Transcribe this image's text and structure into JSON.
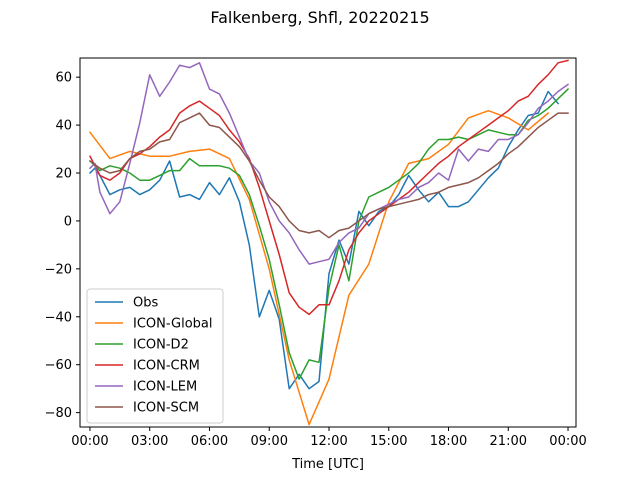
{
  "chart_data": {
    "type": "line",
    "title": "Falkenberg, Shfl, 20220215",
    "xlabel": "Time [UTC]",
    "ylabel": "",
    "xlim": [
      -0.5,
      24.4
    ],
    "ylim": [
      -86,
      68
    ],
    "x_ticks": [
      {
        "value": 0,
        "label": "00:00"
      },
      {
        "value": 3,
        "label": "03:00"
      },
      {
        "value": 6,
        "label": "06:00"
      },
      {
        "value": 9,
        "label": "09:00"
      },
      {
        "value": 12,
        "label": "12:00"
      },
      {
        "value": 15,
        "label": "15:00"
      },
      {
        "value": 18,
        "label": "18:00"
      },
      {
        "value": 21,
        "label": "21:00"
      },
      {
        "value": 24,
        "label": "00:00"
      }
    ],
    "y_ticks": [
      {
        "value": -80,
        "label": "−80"
      },
      {
        "value": -60,
        "label": "−60"
      },
      {
        "value": -40,
        "label": "−40"
      },
      {
        "value": -20,
        "label": "−20"
      },
      {
        "value": 0,
        "label": "0"
      },
      {
        "value": 20,
        "label": "20"
      },
      {
        "value": 40,
        "label": "40"
      },
      {
        "value": 60,
        "label": "60"
      }
    ],
    "grid": false,
    "legend_position": "lower-left",
    "series": [
      {
        "name": "Obs",
        "color": "#1f77b4",
        "points": [
          [
            0,
            20
          ],
          [
            0.25,
            22
          ],
          [
            0.5,
            19
          ],
          [
            1,
            11
          ],
          [
            1.5,
            13
          ],
          [
            2,
            14
          ],
          [
            2.5,
            11
          ],
          [
            3,
            13
          ],
          [
            3.5,
            17
          ],
          [
            4,
            25
          ],
          [
            4.5,
            10
          ],
          [
            5,
            11
          ],
          [
            5.5,
            9
          ],
          [
            6,
            16
          ],
          [
            6.5,
            11
          ],
          [
            7,
            18
          ],
          [
            7.5,
            8
          ],
          [
            8,
            -10
          ],
          [
            8.5,
            -40
          ],
          [
            9,
            -29
          ],
          [
            9.5,
            -41
          ],
          [
            10,
            -70
          ],
          [
            10.5,
            -64
          ],
          [
            11,
            -70
          ],
          [
            11.5,
            -67
          ],
          [
            12,
            -22
          ],
          [
            12.5,
            -8
          ],
          [
            13,
            -18
          ],
          [
            13.5,
            4
          ],
          [
            14,
            -2
          ],
          [
            14.5,
            4
          ],
          [
            15,
            6
          ],
          [
            15.5,
            11
          ],
          [
            16,
            19
          ],
          [
            16.5,
            13
          ],
          [
            17,
            8
          ],
          [
            17.5,
            12
          ],
          [
            18,
            6
          ],
          [
            18.5,
            6
          ],
          [
            19,
            8
          ],
          [
            19.5,
            13
          ],
          [
            20,
            18
          ],
          [
            20.5,
            22
          ],
          [
            21,
            31
          ],
          [
            21.5,
            38
          ],
          [
            22,
            44
          ],
          [
            22.5,
            45
          ],
          [
            23,
            54
          ],
          [
            23.5,
            49
          ]
        ]
      },
      {
        "name": "ICON-Global",
        "color": "#ff7f0e",
        "points": [
          [
            0,
            37
          ],
          [
            1,
            26
          ],
          [
            2,
            29
          ],
          [
            3,
            27
          ],
          [
            4,
            27
          ],
          [
            5,
            29
          ],
          [
            6,
            30
          ],
          [
            7,
            26
          ],
          [
            8,
            9
          ],
          [
            9,
            -20
          ],
          [
            10,
            -58
          ],
          [
            11,
            -85
          ],
          [
            12,
            -66
          ],
          [
            13,
            -31
          ],
          [
            14,
            -18
          ],
          [
            15,
            8
          ],
          [
            16,
            24
          ],
          [
            17,
            26
          ],
          [
            18,
            32
          ],
          [
            19,
            43
          ],
          [
            20,
            46
          ],
          [
            21,
            43
          ],
          [
            22,
            38
          ],
          [
            23,
            45
          ]
        ]
      },
      {
        "name": "ICON-D2",
        "color": "#2ca02c",
        "points": [
          [
            0,
            25
          ],
          [
            0.5,
            21
          ],
          [
            1,
            23
          ],
          [
            1.5,
            22
          ],
          [
            2,
            20
          ],
          [
            2.5,
            17
          ],
          [
            3,
            17
          ],
          [
            3.5,
            19
          ],
          [
            4,
            21
          ],
          [
            4.5,
            21
          ],
          [
            5,
            26
          ],
          [
            5.5,
            23
          ],
          [
            6,
            23
          ],
          [
            6.5,
            23
          ],
          [
            7,
            22
          ],
          [
            7.5,
            19
          ],
          [
            8,
            11
          ],
          [
            8.5,
            -2
          ],
          [
            9,
            -16
          ],
          [
            9.5,
            -35
          ],
          [
            10,
            -55
          ],
          [
            10.5,
            -66
          ],
          [
            11,
            -58
          ],
          [
            11.5,
            -59
          ],
          [
            12,
            -28
          ],
          [
            12.5,
            -10
          ],
          [
            13,
            -25
          ],
          [
            13.5,
            0
          ],
          [
            14,
            10
          ],
          [
            14.5,
            12
          ],
          [
            15,
            14
          ],
          [
            15.5,
            17
          ],
          [
            16,
            20
          ],
          [
            16.5,
            24
          ],
          [
            17,
            30
          ],
          [
            17.5,
            34
          ],
          [
            18,
            34
          ],
          [
            18.5,
            35
          ],
          [
            19,
            34
          ],
          [
            19.5,
            36
          ],
          [
            20,
            38
          ],
          [
            20.5,
            37
          ],
          [
            21,
            36
          ],
          [
            21.5,
            36
          ],
          [
            22,
            42
          ],
          [
            22.5,
            44
          ],
          [
            23,
            47
          ],
          [
            23.5,
            51
          ],
          [
            24,
            55
          ]
        ]
      },
      {
        "name": "ICON-CRM",
        "color": "#d62728",
        "points": [
          [
            0,
            27
          ],
          [
            0.5,
            19
          ],
          [
            1,
            17
          ],
          [
            1.5,
            20
          ],
          [
            2,
            26
          ],
          [
            2.5,
            28
          ],
          [
            3,
            31
          ],
          [
            3.5,
            35
          ],
          [
            4,
            38
          ],
          [
            4.5,
            45
          ],
          [
            5,
            48
          ],
          [
            5.5,
            50
          ],
          [
            6,
            47
          ],
          [
            6.5,
            44
          ],
          [
            7,
            38
          ],
          [
            7.5,
            33
          ],
          [
            8,
            26
          ],
          [
            8.5,
            14
          ],
          [
            9,
            0
          ],
          [
            9.5,
            -14
          ],
          [
            10,
            -30
          ],
          [
            10.5,
            -36
          ],
          [
            11,
            -39
          ],
          [
            11.5,
            -35
          ],
          [
            12,
            -35
          ],
          [
            12.5,
            -25
          ],
          [
            13,
            -12
          ],
          [
            13.5,
            -5
          ],
          [
            14,
            0
          ],
          [
            14.5,
            3
          ],
          [
            15,
            6
          ],
          [
            15.5,
            9
          ],
          [
            16,
            12
          ],
          [
            16.5,
            16
          ],
          [
            17,
            20
          ],
          [
            17.5,
            24
          ],
          [
            18,
            27
          ],
          [
            18.5,
            31
          ],
          [
            19,
            34
          ],
          [
            19.5,
            37
          ],
          [
            20,
            40
          ],
          [
            20.5,
            43
          ],
          [
            21,
            46
          ],
          [
            21.5,
            50
          ],
          [
            22,
            52
          ],
          [
            22.5,
            57
          ],
          [
            23,
            61
          ],
          [
            23.5,
            66
          ],
          [
            24,
            67
          ]
        ]
      },
      {
        "name": "ICON-LEM",
        "color": "#9467bd",
        "points": [
          [
            0,
            22
          ],
          [
            0.25,
            24
          ],
          [
            0.5,
            12
          ],
          [
            1,
            3
          ],
          [
            1.5,
            8
          ],
          [
            2,
            24
          ],
          [
            2.5,
            41
          ],
          [
            3,
            61
          ],
          [
            3.5,
            52
          ],
          [
            4,
            58
          ],
          [
            4.5,
            65
          ],
          [
            5,
            64
          ],
          [
            5.5,
            66
          ],
          [
            6,
            55
          ],
          [
            6.5,
            53
          ],
          [
            7,
            45
          ],
          [
            7.5,
            35
          ],
          [
            8,
            25
          ],
          [
            8.5,
            20
          ],
          [
            9,
            8
          ],
          [
            9.5,
            0
          ],
          [
            10,
            -5
          ],
          [
            10.5,
            -12
          ],
          [
            11,
            -18
          ],
          [
            11.5,
            -17
          ],
          [
            12,
            -16
          ],
          [
            12.5,
            -9
          ],
          [
            13,
            -5
          ],
          [
            13.5,
            -3
          ],
          [
            14,
            3
          ],
          [
            14.5,
            5
          ],
          [
            15,
            7
          ],
          [
            15.5,
            9
          ],
          [
            16,
            10
          ],
          [
            16.5,
            14
          ],
          [
            17,
            16
          ],
          [
            17.5,
            20
          ],
          [
            18,
            17
          ],
          [
            18.5,
            30
          ],
          [
            19,
            25
          ],
          [
            19.5,
            30
          ],
          [
            20,
            29
          ],
          [
            20.5,
            34
          ],
          [
            21,
            34
          ],
          [
            21.5,
            36
          ],
          [
            22,
            41
          ],
          [
            22.5,
            47
          ],
          [
            23,
            50
          ],
          [
            23.5,
            54
          ],
          [
            24,
            57
          ]
        ]
      },
      {
        "name": "ICON-SCM",
        "color": "#8c564b",
        "points": [
          [
            0,
            25
          ],
          [
            0.5,
            22
          ],
          [
            1,
            20
          ],
          [
            1.5,
            21
          ],
          [
            2,
            26
          ],
          [
            2.5,
            29
          ],
          [
            3,
            30
          ],
          [
            3.5,
            33
          ],
          [
            4,
            34
          ],
          [
            4.5,
            41
          ],
          [
            5,
            43
          ],
          [
            5.5,
            45
          ],
          [
            6,
            40
          ],
          [
            6.5,
            39
          ],
          [
            7,
            35
          ],
          [
            7.5,
            31
          ],
          [
            8,
            25
          ],
          [
            8.5,
            17
          ],
          [
            9,
            10
          ],
          [
            9.5,
            6
          ],
          [
            10,
            0
          ],
          [
            10.5,
            -4
          ],
          [
            11,
            -5
          ],
          [
            11.5,
            -4
          ],
          [
            12,
            -7
          ],
          [
            12.5,
            -4
          ],
          [
            13,
            -3
          ],
          [
            13.5,
            0
          ],
          [
            14,
            3
          ],
          [
            14.5,
            5
          ],
          [
            15,
            6
          ],
          [
            15.5,
            7
          ],
          [
            16,
            8
          ],
          [
            16.5,
            9
          ],
          [
            17,
            11
          ],
          [
            17.5,
            12
          ],
          [
            18,
            14
          ],
          [
            18.5,
            15
          ],
          [
            19,
            16
          ],
          [
            19.5,
            18
          ],
          [
            20,
            21
          ],
          [
            20.5,
            24
          ],
          [
            21,
            28
          ],
          [
            21.5,
            31
          ],
          [
            22,
            35
          ],
          [
            22.5,
            39
          ],
          [
            23,
            42
          ],
          [
            23.5,
            45
          ],
          [
            24,
            45
          ]
        ]
      }
    ]
  }
}
